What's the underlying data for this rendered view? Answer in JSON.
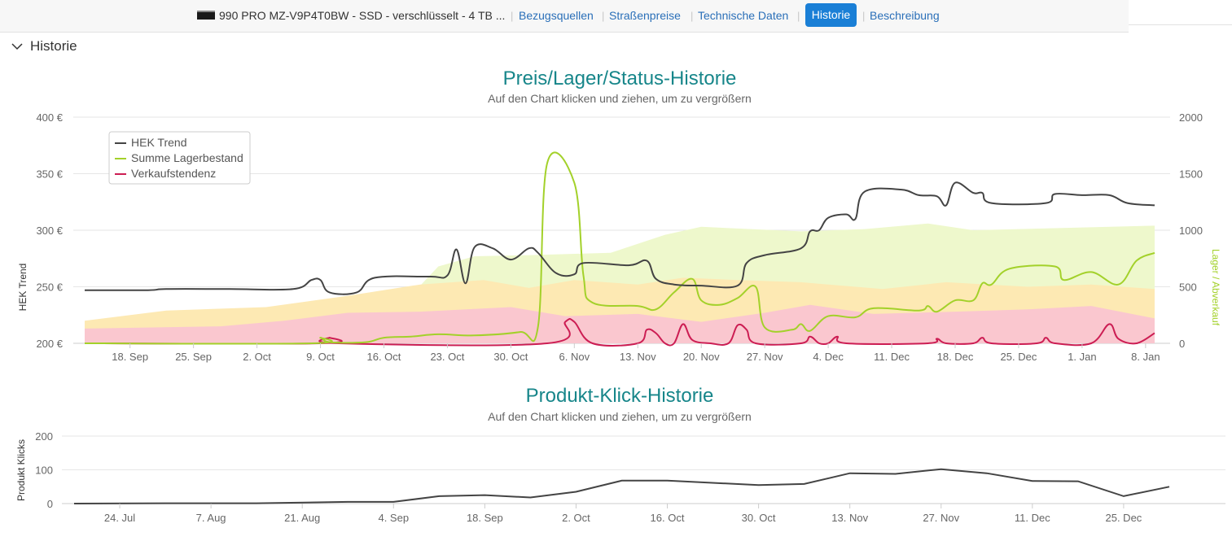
{
  "topnav": {
    "product_title": "990 PRO MZ-V9P4T0BW - SSD - verschlüsselt - 4 TB ...",
    "links": [
      "Bezugsquellen",
      "Straßenpreise",
      "Technische Daten",
      "Historie",
      "Beschreibung"
    ],
    "active": "Historie"
  },
  "section": {
    "title": "Historie"
  },
  "chart1": {
    "title": "Preis/Lager/Status-Historie",
    "subtitle": "Auf den Chart klicken und ziehen, um zu vergrößern",
    "ylabel_left": "HEK Trend",
    "ylabel_right": "Lager / Abverkauf",
    "left_ticks": [
      "200 €",
      "250 €",
      "300 €",
      "350 €",
      "400 €"
    ],
    "right_ticks": [
      "0",
      "500",
      "1000",
      "1500",
      "2000"
    ],
    "x_ticks": [
      "18. Sep",
      "25. Sep",
      "2. Oct",
      "9. Oct",
      "16. Oct",
      "23. Oct",
      "30. Oct",
      "6. Nov",
      "13. Nov",
      "20. Nov",
      "27. Nov",
      "4. Dec",
      "11. Dec",
      "18. Dec",
      "25. Dec",
      "1. Jan",
      "8. Jan"
    ],
    "legend": [
      "HEK Trend",
      "Summe Lagerbestand",
      "Verkaufstendenz"
    ]
  },
  "chart2": {
    "title": "Produkt-Klick-Historie",
    "subtitle": "Auf den Chart klicken und ziehen, um zu vergrößern",
    "ylabel": "Produkt Klicks",
    "y_ticks": [
      "0",
      "100",
      "200"
    ],
    "x_ticks": [
      "24. Jul",
      "7. Aug",
      "21. Aug",
      "4. Sep",
      "18. Sep",
      "2. Oct",
      "16. Oct",
      "30. Oct",
      "13. Nov",
      "27. Nov",
      "11. Dec",
      "25. Dec"
    ]
  },
  "chart_data": [
    {
      "type": "line",
      "title": "Preis/Lager/Status-Historie",
      "xlabel": "",
      "ylabel": "HEK Trend",
      "y2label": "Lager / Abverkauf",
      "ylim": [
        200,
        400
      ],
      "y2lim": [
        0,
        2000
      ],
      "grid": true,
      "legend_position": "top-left",
      "colors": {
        "hek": "#444444",
        "lager": "#a3d12a",
        "verkauf": "#cc1d53",
        "band_green": "#eef8cc",
        "band_yellow": "#fde9b3",
        "band_red": "#fac7cf"
      },
      "series": [
        {
          "name": "HEK Trend",
          "axis": "left",
          "points": [
            [
              "2023-09-13",
              247
            ],
            [
              "2023-09-20",
              247
            ],
            [
              "2023-09-22",
              248
            ],
            [
              "2023-09-29",
              248
            ],
            [
              "2023-10-06",
              248
            ],
            [
              "2023-10-08",
              256
            ],
            [
              "2023-10-09",
              256
            ],
            [
              "2023-10-10",
              245
            ],
            [
              "2023-10-13",
              245
            ],
            [
              "2023-10-15",
              258
            ],
            [
              "2023-10-21",
              259
            ],
            [
              "2023-10-23",
              260
            ],
            [
              "2023-10-24",
              283
            ],
            [
              "2023-10-25",
              253
            ],
            [
              "2023-10-26",
              285
            ],
            [
              "2023-10-28",
              284
            ],
            [
              "2023-10-30",
              274
            ],
            [
              "2023-11-01",
              284
            ],
            [
              "2023-11-02",
              280
            ],
            [
              "2023-11-04",
              262
            ],
            [
              "2023-11-06",
              261
            ],
            [
              "2023-11-07",
              271
            ],
            [
              "2023-11-12",
              269
            ],
            [
              "2023-11-14",
              273
            ],
            [
              "2023-11-15",
              257
            ],
            [
              "2023-11-17",
              252
            ],
            [
              "2023-11-20",
              251
            ],
            [
              "2023-11-24",
              251
            ],
            [
              "2023-11-25",
              271
            ],
            [
              "2023-11-27",
              278
            ],
            [
              "2023-12-01",
              284
            ],
            [
              "2023-12-02",
              299
            ],
            [
              "2023-12-03",
              300
            ],
            [
              "2023-12-04",
              311
            ],
            [
              "2023-12-06",
              314
            ],
            [
              "2023-12-07",
              310
            ],
            [
              "2023-12-08",
              334
            ],
            [
              "2023-12-12",
              336
            ],
            [
              "2023-12-14",
              331
            ],
            [
              "2023-12-16",
              330
            ],
            [
              "2023-12-17",
              322
            ],
            [
              "2023-12-18",
              342
            ],
            [
              "2023-12-20",
              333
            ],
            [
              "2023-12-21",
              333
            ],
            [
              "2023-12-22",
              324
            ],
            [
              "2023-12-28",
              324
            ],
            [
              "2023-12-29",
              332
            ],
            [
              "2024-01-01",
              331
            ],
            [
              "2024-01-04",
              331
            ],
            [
              "2024-01-06",
              324
            ],
            [
              "2024-01-09",
              322
            ]
          ]
        },
        {
          "name": "Summe Lagerbestand",
          "axis": "right",
          "points": [
            [
              "2023-09-13",
              0
            ],
            [
              "2023-10-08",
              0
            ],
            [
              "2023-10-09",
              50
            ],
            [
              "2023-10-10",
              10
            ],
            [
              "2023-10-14",
              10
            ],
            [
              "2023-10-16",
              50
            ],
            [
              "2023-10-19",
              60
            ],
            [
              "2023-10-22",
              80
            ],
            [
              "2023-10-26",
              70
            ],
            [
              "2023-10-31",
              100
            ],
            [
              "2023-11-02",
              150
            ],
            [
              "2023-11-03",
              1590
            ],
            [
              "2023-11-06",
              1420
            ],
            [
              "2023-11-07",
              600
            ],
            [
              "2023-11-08",
              360
            ],
            [
              "2023-11-13",
              330
            ],
            [
              "2023-11-15",
              300
            ],
            [
              "2023-11-17",
              450
            ],
            [
              "2023-11-19",
              570
            ],
            [
              "2023-11-20",
              380
            ],
            [
              "2023-11-22",
              340
            ],
            [
              "2023-11-24",
              400
            ],
            [
              "2023-11-26",
              500
            ],
            [
              "2023-11-27",
              140
            ],
            [
              "2023-11-30",
              120
            ],
            [
              "2023-12-01",
              170
            ],
            [
              "2023-12-02",
              110
            ],
            [
              "2023-12-04",
              240
            ],
            [
              "2023-12-07",
              230
            ],
            [
              "2023-12-09",
              310
            ],
            [
              "2023-12-14",
              290
            ],
            [
              "2023-12-15",
              330
            ],
            [
              "2023-12-16",
              280
            ],
            [
              "2023-12-18",
              380
            ],
            [
              "2023-12-20",
              380
            ],
            [
              "2023-12-21",
              530
            ],
            [
              "2023-12-22",
              520
            ],
            [
              "2023-12-24",
              660
            ],
            [
              "2023-12-29",
              680
            ],
            [
              "2023-12-30",
              560
            ],
            [
              "2024-01-02",
              630
            ],
            [
              "2024-01-05",
              520
            ],
            [
              "2024-01-07",
              730
            ],
            [
              "2024-01-09",
              800
            ]
          ]
        },
        {
          "name": "Verkaufstendenz",
          "axis": "right",
          "points": [
            [
              "2023-09-13",
              0
            ],
            [
              "2023-10-09",
              0
            ],
            [
              "2023-10-10",
              50
            ],
            [
              "2023-10-11",
              0
            ],
            [
              "2023-11-03",
              0
            ],
            [
              "2023-11-05",
              190
            ],
            [
              "2023-11-06",
              190
            ],
            [
              "2023-11-08",
              0
            ],
            [
              "2023-11-13",
              0
            ],
            [
              "2023-11-14",
              120
            ],
            [
              "2023-11-15",
              90
            ],
            [
              "2023-11-16",
              0
            ],
            [
              "2023-11-17",
              0
            ],
            [
              "2023-11-18",
              170
            ],
            [
              "2023-11-19",
              30
            ],
            [
              "2023-11-21",
              0
            ],
            [
              "2023-11-23",
              0
            ],
            [
              "2023-11-24",
              160
            ],
            [
              "2023-11-25",
              120
            ],
            [
              "2023-11-26",
              0
            ],
            [
              "2023-12-01",
              0
            ],
            [
              "2023-12-02",
              60
            ],
            [
              "2023-12-03",
              0
            ],
            [
              "2023-12-04",
              0
            ],
            [
              "2023-12-05",
              60
            ],
            [
              "2023-12-06",
              0
            ],
            [
              "2023-12-15",
              0
            ],
            [
              "2023-12-16",
              40
            ],
            [
              "2023-12-17",
              0
            ],
            [
              "2023-12-20",
              0
            ],
            [
              "2023-12-21",
              50
            ],
            [
              "2023-12-22",
              0
            ],
            [
              "2023-12-27",
              0
            ],
            [
              "2023-12-28",
              50
            ],
            [
              "2023-12-29",
              0
            ],
            [
              "2024-01-02",
              0
            ],
            [
              "2024-01-04",
              170
            ],
            [
              "2024-01-05",
              40
            ],
            [
              "2024-01-07",
              0
            ],
            [
              "2024-01-09",
              90
            ]
          ]
        }
      ],
      "bands": [
        {
          "color": "band_green",
          "points": [
            [
              "2023-10-08",
              0
            ],
            [
              "2023-10-18",
              340
            ],
            [
              "2023-10-22",
              680
            ],
            [
              "2023-10-26",
              770
            ],
            [
              "2023-11-01",
              780
            ],
            [
              "2023-11-10",
              800
            ],
            [
              "2023-11-16",
              960
            ],
            [
              "2023-11-20",
              1030
            ],
            [
              "2023-12-01",
              990
            ],
            [
              "2023-12-08",
              1010
            ],
            [
              "2023-12-15",
              1060
            ],
            [
              "2023-12-20",
              1000
            ],
            [
              "2024-01-09",
              1040
            ]
          ]
        },
        {
          "color": "band_yellow",
          "points": [
            [
              "2023-09-13",
              200
            ],
            [
              "2023-09-22",
              290
            ],
            [
              "2023-10-03",
              320
            ],
            [
              "2023-10-12",
              420
            ],
            [
              "2023-10-20",
              520
            ],
            [
              "2023-10-27",
              560
            ],
            [
              "2023-11-01",
              490
            ],
            [
              "2023-11-06",
              560
            ],
            [
              "2023-11-13",
              520
            ],
            [
              "2023-11-18",
              580
            ],
            [
              "2023-11-24",
              560
            ],
            [
              "2023-12-01",
              540
            ],
            [
              "2023-12-10",
              480
            ],
            [
              "2023-12-17",
              540
            ],
            [
              "2023-12-26",
              500
            ],
            [
              "2024-01-02",
              520
            ],
            [
              "2024-01-09",
              480
            ]
          ]
        },
        {
          "color": "band_red",
          "points": [
            [
              "2023-09-13",
              130
            ],
            [
              "2023-09-28",
              150
            ],
            [
              "2023-10-05",
              200
            ],
            [
              "2023-10-12",
              270
            ],
            [
              "2023-10-20",
              280
            ],
            [
              "2023-10-30",
              320
            ],
            [
              "2023-11-05",
              240
            ],
            [
              "2023-11-13",
              260
            ],
            [
              "2023-11-20",
              190
            ],
            [
              "2023-11-27",
              270
            ],
            [
              "2023-12-02",
              340
            ],
            [
              "2023-12-09",
              260
            ],
            [
              "2023-12-18",
              280
            ],
            [
              "2023-12-26",
              300
            ],
            [
              "2024-01-02",
              330
            ],
            [
              "2024-01-09",
              220
            ]
          ]
        }
      ]
    },
    {
      "type": "line",
      "title": "Produkt-Klick-Historie",
      "xlabel": "",
      "ylabel": "Produkt Klicks",
      "ylim": [
        0,
        200
      ],
      "grid": true,
      "color": "#444444",
      "series": [
        {
          "points": [
            [
              "2023-07-17",
              0
            ],
            [
              "2023-07-31",
              1
            ],
            [
              "2023-08-14",
              1
            ],
            [
              "2023-08-28",
              5
            ],
            [
              "2023-09-04",
              5
            ],
            [
              "2023-09-11",
              22
            ],
            [
              "2023-09-18",
              25
            ],
            [
              "2023-09-25",
              18
            ],
            [
              "2023-10-02",
              35
            ],
            [
              "2023-10-09",
              68
            ],
            [
              "2023-10-16",
              68
            ],
            [
              "2023-10-30",
              55
            ],
            [
              "2023-11-06",
              58
            ],
            [
              "2023-11-13",
              90
            ],
            [
              "2023-11-20",
              88
            ],
            [
              "2023-11-27",
              102
            ],
            [
              "2023-12-04",
              90
            ],
            [
              "2023-12-11",
              67
            ],
            [
              "2023-12-18",
              66
            ],
            [
              "2023-12-25",
              22
            ],
            [
              "2024-01-01",
              50
            ]
          ]
        }
      ]
    }
  ]
}
